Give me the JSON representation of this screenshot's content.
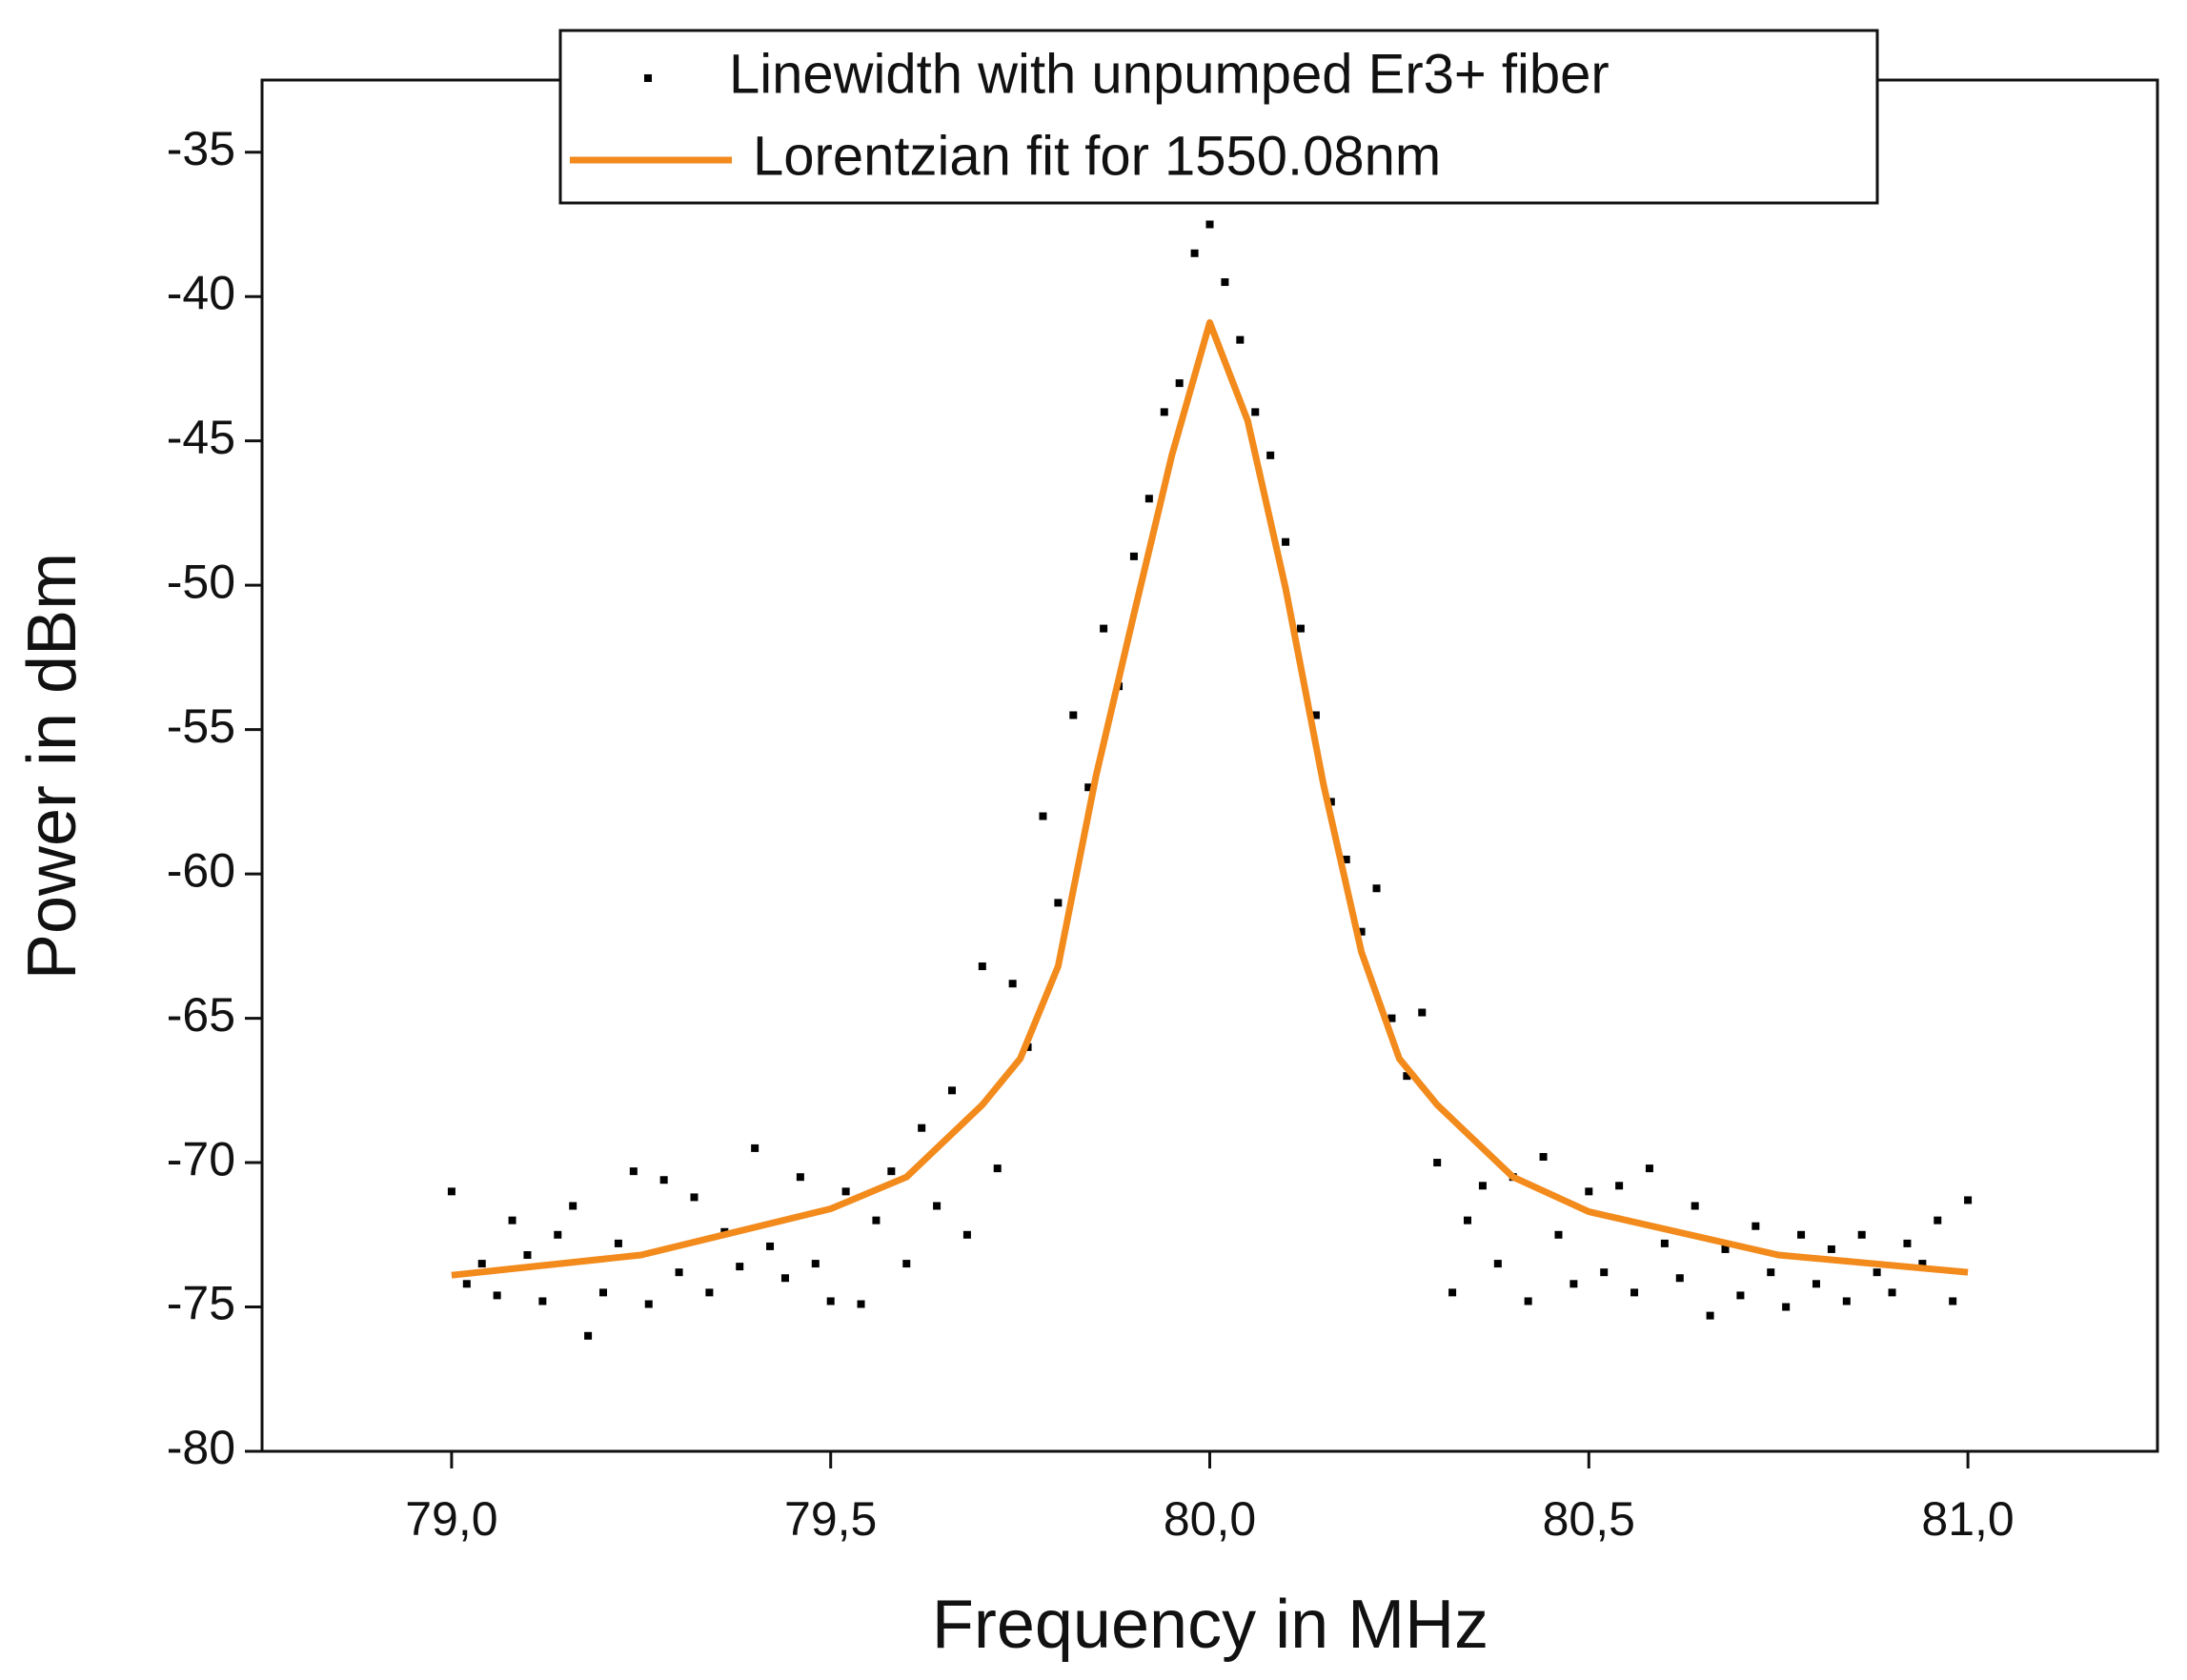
{
  "chart_data": {
    "type": "scatter",
    "xlabel": "Frequency in MHz",
    "ylabel": "Power in dBm",
    "xlim": [
      78.75,
      81.25
    ],
    "ylim": [
      -80,
      -32.5
    ],
    "xticks": [
      {
        "value": 79,
        "label": "79,0"
      },
      {
        "value": 79.5,
        "label": "79,5"
      },
      {
        "value": 80,
        "label": "80,0"
      },
      {
        "value": 80.5,
        "label": "80,5"
      },
      {
        "value": 81,
        "label": "81,0"
      }
    ],
    "yticks": [
      -80,
      -75,
      -70,
      -65,
      -60,
      -55,
      -50,
      -45,
      -40,
      -35
    ],
    "legend": "top",
    "series": [
      {
        "name": "Linewidth with unpumped Er3+ fiber",
        "type": "scatter",
        "color": "#000000",
        "x": [
          79.0,
          79.02,
          79.04,
          79.06,
          79.08,
          79.1,
          79.12,
          79.14,
          79.16,
          79.18,
          79.2,
          79.22,
          79.24,
          79.26,
          79.28,
          79.3,
          79.32,
          79.34,
          79.36,
          79.38,
          79.4,
          79.42,
          79.44,
          79.46,
          79.48,
          79.5,
          79.52,
          79.54,
          79.56,
          79.58,
          79.6,
          79.62,
          79.64,
          79.66,
          79.68,
          79.7,
          79.72,
          79.74,
          79.76,
          79.78,
          79.8,
          79.82,
          79.84,
          79.86,
          79.88,
          79.9,
          79.92,
          79.94,
          79.96,
          79.98,
          80.0,
          80.02,
          80.04,
          80.06,
          80.08,
          80.1,
          80.12,
          80.14,
          80.16,
          80.18,
          80.2,
          80.22,
          80.24,
          80.26,
          80.28,
          80.3,
          80.32,
          80.34,
          80.36,
          80.38,
          80.4,
          80.42,
          80.44,
          80.46,
          80.48,
          80.5,
          80.52,
          80.54,
          80.56,
          80.58,
          80.6,
          80.62,
          80.64,
          80.66,
          80.68,
          80.7,
          80.72,
          80.74,
          80.76,
          80.78,
          80.8,
          80.82,
          80.84,
          80.86,
          80.88,
          80.9,
          80.92,
          80.94,
          80.96,
          80.98,
          81.0
        ],
        "y": [
          -71.0,
          -74.2,
          -73.5,
          -74.6,
          -72.0,
          -73.2,
          -74.8,
          -72.5,
          -71.5,
          -76.0,
          -74.5,
          -72.8,
          -70.3,
          -74.9,
          -70.6,
          -73.8,
          -71.2,
          -74.5,
          -72.4,
          -73.6,
          -69.5,
          -72.9,
          -74.0,
          -70.5,
          -73.5,
          -74.8,
          -71.0,
          -74.9,
          -72.0,
          -70.3,
          -73.5,
          -68.8,
          -71.5,
          -67.5,
          -72.5,
          -63.2,
          -70.2,
          -63.8,
          -66.0,
          -58.0,
          -61.0,
          -54.5,
          -57.0,
          -51.5,
          -53.5,
          -49.0,
          -47.0,
          -44.0,
          -43.0,
          -38.5,
          -37.5,
          -39.5,
          -41.5,
          -44.0,
          -45.5,
          -48.5,
          -51.5,
          -54.5,
          -57.5,
          -59.5,
          -62.0,
          -60.5,
          -65.0,
          -67.0,
          -64.8,
          -70.0,
          -74.5,
          -72.0,
          -70.8,
          -73.5,
          -70.5,
          -74.8,
          -69.8,
          -72.5,
          -74.2,
          -71.0,
          -73.8,
          -70.8,
          -74.5,
          -70.2,
          -72.8,
          -74.0,
          -71.5,
          -75.3,
          -73.0,
          -74.6,
          -72.2,
          -73.8,
          -75.0,
          -72.5,
          -74.2,
          -73.0,
          -74.8,
          -72.5,
          -73.8,
          -74.5,
          -72.8,
          -73.5,
          -72.0,
          -74.8,
          -71.3
        ]
      },
      {
        "name": "Lorentzian fit for 1550.08nm",
        "type": "line",
        "color": "#f28a1c",
        "x": [
          79.0,
          79.25,
          79.5,
          79.6,
          79.7,
          79.75,
          79.8,
          79.85,
          79.9,
          79.95,
          80.0,
          80.05,
          80.1,
          80.15,
          80.2,
          80.25,
          80.3,
          80.4,
          80.5,
          80.75,
          81.0
        ],
        "y": [
          -73.9,
          -73.2,
          -71.6,
          -70.5,
          -68.0,
          -66.4,
          -63.2,
          -56.6,
          -51.0,
          -45.5,
          -40.9,
          -44.3,
          -50.1,
          -56.9,
          -62.7,
          -66.4,
          -68.0,
          -70.5,
          -71.7,
          -73.2,
          -73.8
        ]
      }
    ]
  }
}
